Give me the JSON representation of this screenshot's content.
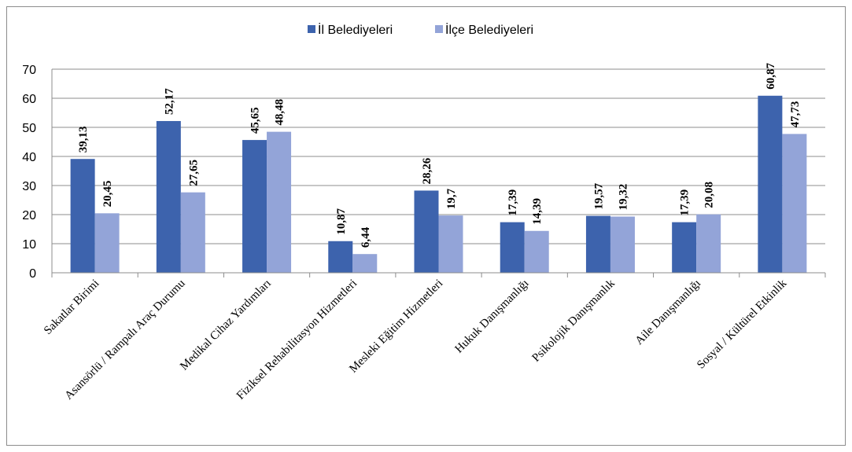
{
  "chart_data": {
    "type": "bar",
    "title": "",
    "xlabel": "",
    "ylabel": "",
    "ylim": [
      0,
      70
    ],
    "yticks": [
      "0",
      "10",
      "20",
      "30",
      "40",
      "50",
      "60",
      "70"
    ],
    "grid": true,
    "legend_position": "top-center",
    "categories": [
      "Sakatlar Birimi",
      "Asansörlü / Rampalı Araç Durumu",
      "Medikal Cihaz Yardımları",
      "Fiziksel Rehabilitasyon Hizmetleri",
      "Mesleki Eğitim Hizmetleri",
      "Hukuk Danışmanlığı",
      "Psikolojik Danışmanlık",
      "Aile Danışmanlığı",
      "Sosyal / Kültürel Etkinlik"
    ],
    "series": [
      {
        "name": "İl Belediyeleri",
        "color": "#3d63ad",
        "values": [
          39.13,
          52.17,
          45.65,
          10.87,
          28.26,
          17.39,
          19.57,
          17.39,
          60.87
        ],
        "labels": [
          "39,13",
          "52,17",
          "45,65",
          "10,87",
          "28,26",
          "17,39",
          "19,57",
          "17,39",
          "60,87"
        ]
      },
      {
        "name": "İlçe Belediyeleri",
        "color": "#93a4d8",
        "values": [
          20.45,
          27.65,
          48.48,
          6.44,
          19.7,
          14.39,
          19.32,
          20.08,
          47.73
        ],
        "labels": [
          "20,45",
          "27,65",
          "48,48",
          "6,44",
          "19,7",
          "14,39",
          "19,32",
          "20,08",
          "47,73"
        ]
      }
    ]
  }
}
